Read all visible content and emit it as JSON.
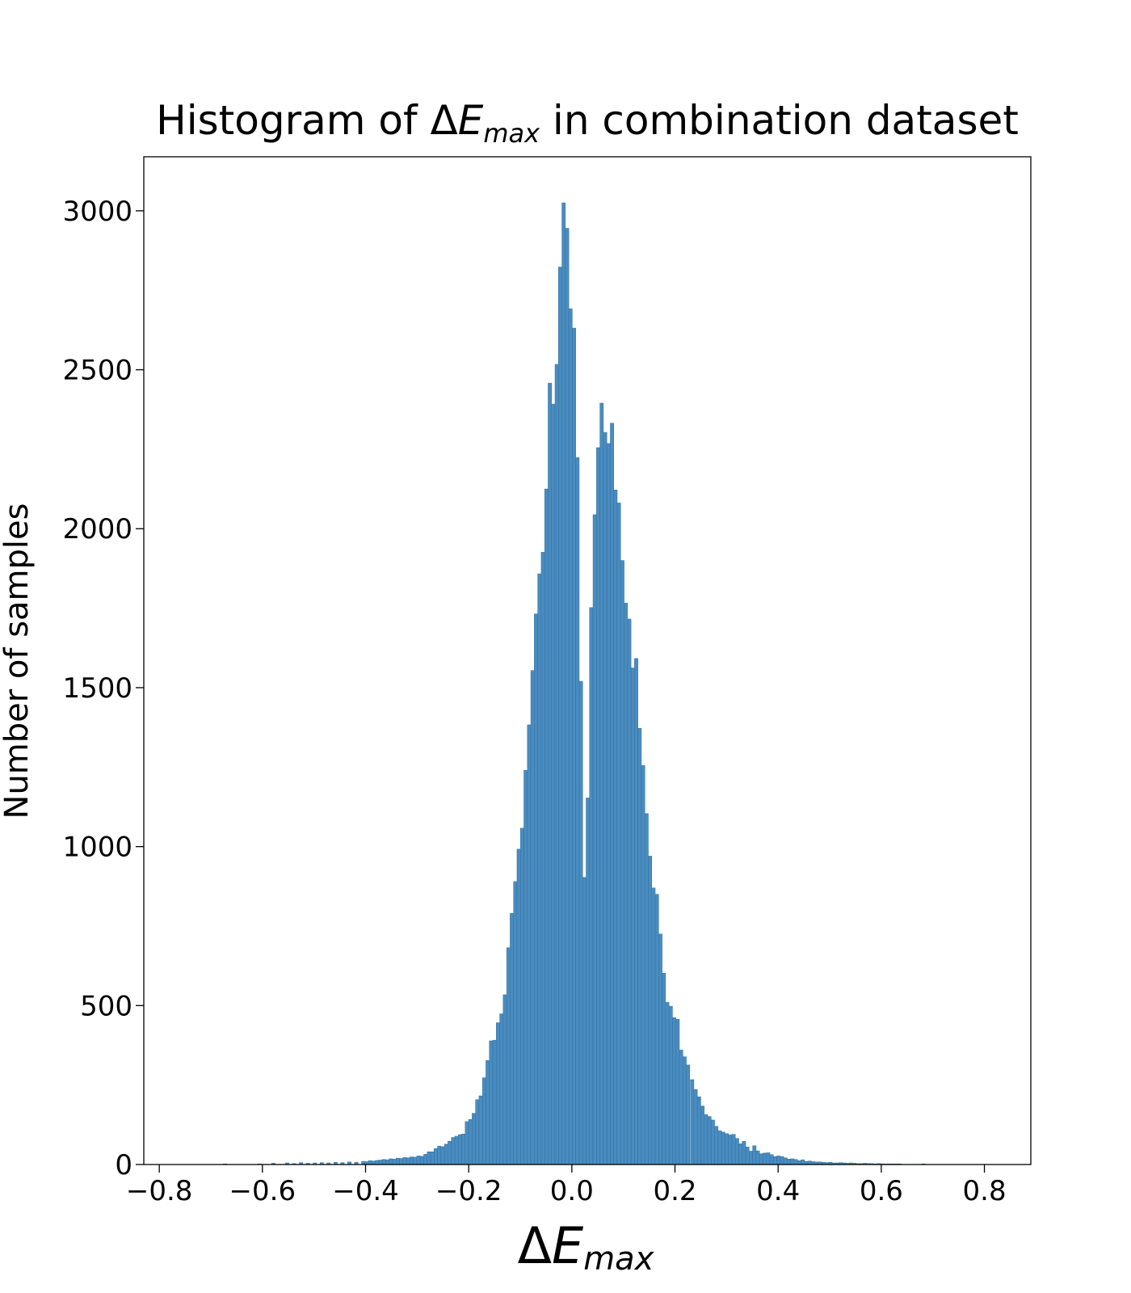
{
  "title_parts": {
    "before": "Histogram of ",
    "delta": "Δ",
    "e": "E",
    "sub": "max",
    "after": " in combination dataset"
  },
  "xlabel_parts": {
    "delta": "Δ",
    "e": "E",
    "sub": "max"
  },
  "chart_data": {
    "type": "bar",
    "title": "Histogram of ΔE_max in combination dataset",
    "xlabel": "ΔE_max",
    "ylabel": "Number of samples",
    "xlim": [
      -0.83,
      0.89
    ],
    "ylim": [
      0,
      3170
    ],
    "xticks": [
      -0.8,
      -0.6,
      -0.4,
      -0.2,
      0.0,
      0.2,
      0.4,
      0.6,
      0.8
    ],
    "xtick_labels": [
      "−0.8",
      "−0.6",
      "−0.4",
      "−0.2",
      "0.0",
      "0.2",
      "0.4",
      "0.6",
      "0.8"
    ],
    "yticks": [
      0,
      500,
      1000,
      1500,
      2000,
      2500,
      3000
    ],
    "ytick_labels": [
      "0",
      "500",
      "1000",
      "1500",
      "2000",
      "2500",
      "3000"
    ],
    "grid": false,
    "bar_color": "#4a8cbf",
    "bar_edge_color": "#2f6f9f",
    "bin_width": 0.0067,
    "bins": [
      [
        -0.6724,
        2
      ],
      [
        -0.6055,
        2
      ],
      [
        -0.5787,
        4
      ],
      [
        -0.5519,
        5
      ],
      [
        -0.5385,
        3
      ],
      [
        -0.5251,
        6
      ],
      [
        -0.5117,
        4
      ],
      [
        -0.4983,
        5
      ],
      [
        -0.4849,
        6
      ],
      [
        -0.4715,
        5
      ],
      [
        -0.4581,
        7
      ],
      [
        -0.4447,
        6
      ],
      [
        -0.4313,
        8
      ],
      [
        -0.4179,
        7
      ],
      [
        -0.4045,
        10
      ],
      [
        -0.3978,
        9
      ],
      [
        -0.3911,
        12
      ],
      [
        -0.3844,
        11
      ],
      [
        -0.3777,
        13
      ],
      [
        -0.371,
        14
      ],
      [
        -0.3643,
        16
      ],
      [
        -0.3576,
        15
      ],
      [
        -0.3509,
        18
      ],
      [
        -0.3442,
        17
      ],
      [
        -0.3375,
        20
      ],
      [
        -0.3308,
        19
      ],
      [
        -0.3241,
        22
      ],
      [
        -0.3174,
        21
      ],
      [
        -0.3107,
        24
      ],
      [
        -0.304,
        23
      ],
      [
        -0.2973,
        27
      ],
      [
        -0.2906,
        26
      ],
      [
        -0.2839,
        32
      ],
      [
        -0.2772,
        40
      ],
      [
        -0.2705,
        40
      ],
      [
        -0.2638,
        50
      ],
      [
        -0.2571,
        58
      ],
      [
        -0.2504,
        56
      ],
      [
        -0.2437,
        64
      ],
      [
        -0.237,
        73
      ],
      [
        -0.2303,
        85
      ],
      [
        -0.2236,
        89
      ],
      [
        -0.2169,
        94
      ],
      [
        -0.2102,
        96
      ],
      [
        -0.2035,
        135
      ],
      [
        -0.1968,
        142
      ],
      [
        -0.1901,
        161
      ],
      [
        -0.1834,
        204
      ],
      [
        -0.1767,
        216
      ],
      [
        -0.17,
        273
      ],
      [
        -0.1633,
        327
      ],
      [
        -0.1566,
        389
      ],
      [
        -0.1499,
        391
      ],
      [
        -0.1432,
        446
      ],
      [
        -0.1365,
        474
      ],
      [
        -0.1298,
        534
      ],
      [
        -0.1231,
        682
      ],
      [
        -0.1164,
        790
      ],
      [
        -0.1097,
        890
      ],
      [
        -0.103,
        992
      ],
      [
        -0.0963,
        1058
      ],
      [
        -0.0896,
        1240
      ],
      [
        -0.0829,
        1383
      ],
      [
        -0.0762,
        1554
      ],
      [
        -0.0695,
        1732
      ],
      [
        -0.0628,
        1858
      ],
      [
        -0.0561,
        1926
      ],
      [
        -0.0494,
        2125
      ],
      [
        -0.0427,
        2458
      ],
      [
        -0.036,
        2392
      ],
      [
        -0.0293,
        2517
      ],
      [
        -0.0226,
        2823
      ],
      [
        -0.0159,
        3025
      ],
      [
        -0.0092,
        2945
      ],
      [
        -0.0025,
        2692
      ],
      [
        0.0042,
        2631
      ],
      [
        0.0109,
        2224
      ],
      [
        0.0176,
        1520
      ],
      [
        0.0243,
        903
      ],
      [
        0.031,
        1153
      ],
      [
        0.0377,
        1752
      ],
      [
        0.0444,
        2044
      ],
      [
        0.0511,
        2255
      ],
      [
        0.0578,
        2395
      ],
      [
        0.0645,
        2303
      ],
      [
        0.0712,
        2268
      ],
      [
        0.0779,
        2332
      ],
      [
        0.0846,
        2122
      ],
      [
        0.0913,
        2081
      ],
      [
        0.098,
        1900
      ],
      [
        0.1047,
        1766
      ],
      [
        0.1114,
        1716
      ],
      [
        0.1181,
        1562
      ],
      [
        0.1248,
        1592
      ],
      [
        0.1315,
        1372
      ],
      [
        0.1382,
        1255
      ],
      [
        0.1449,
        1104
      ],
      [
        0.1516,
        970
      ],
      [
        0.1583,
        870
      ],
      [
        0.165,
        850
      ],
      [
        0.1717,
        725
      ],
      [
        0.1784,
        602
      ],
      [
        0.1851,
        510
      ],
      [
        0.1918,
        498
      ],
      [
        0.1985,
        462
      ],
      [
        0.2052,
        457
      ],
      [
        0.2119,
        360
      ],
      [
        0.2186,
        339
      ],
      [
        0.2253,
        313
      ],
      [
        0.2333,
        267
      ],
      [
        0.24,
        236
      ],
      [
        0.2467,
        213
      ],
      [
        0.2534,
        184
      ],
      [
        0.2601,
        157
      ],
      [
        0.2668,
        151
      ],
      [
        0.2735,
        140
      ],
      [
        0.2802,
        120
      ],
      [
        0.2869,
        106
      ],
      [
        0.2936,
        102
      ],
      [
        0.3003,
        97
      ],
      [
        0.307,
        93
      ],
      [
        0.3137,
        95
      ],
      [
        0.3204,
        82
      ],
      [
        0.3271,
        65
      ],
      [
        0.3338,
        73
      ],
      [
        0.3405,
        55
      ],
      [
        0.3472,
        42
      ],
      [
        0.3539,
        59
      ],
      [
        0.3606,
        43
      ],
      [
        0.3673,
        34
      ],
      [
        0.374,
        36
      ],
      [
        0.3807,
        37
      ],
      [
        0.3874,
        31
      ],
      [
        0.3941,
        25
      ],
      [
        0.4008,
        27
      ],
      [
        0.4075,
        25
      ],
      [
        0.4142,
        21
      ],
      [
        0.4209,
        17
      ],
      [
        0.4276,
        18
      ],
      [
        0.4343,
        16
      ],
      [
        0.441,
        12
      ],
      [
        0.4477,
        15
      ],
      [
        0.4544,
        10
      ],
      [
        0.4611,
        11
      ],
      [
        0.4678,
        9
      ],
      [
        0.4745,
        8
      ],
      [
        0.4812,
        8
      ],
      [
        0.4879,
        7
      ],
      [
        0.4946,
        6
      ],
      [
        0.5013,
        7
      ],
      [
        0.508,
        5
      ],
      [
        0.5147,
        5
      ],
      [
        0.5214,
        6
      ],
      [
        0.5281,
        5
      ],
      [
        0.5348,
        4
      ],
      [
        0.5415,
        5
      ],
      [
        0.5482,
        4
      ],
      [
        0.5549,
        3
      ],
      [
        0.5616,
        3
      ],
      [
        0.5683,
        4
      ],
      [
        0.575,
        3
      ],
      [
        0.5817,
        3
      ],
      [
        0.5884,
        2
      ],
      [
        0.5951,
        3
      ],
      [
        0.6018,
        2
      ],
      [
        0.6085,
        2
      ],
      [
        0.6152,
        2
      ],
      [
        0.6219,
        2
      ],
      [
        0.6286,
        2
      ],
      [
        0.6353,
        2
      ],
      [
        0.6822,
        2
      ]
    ]
  }
}
